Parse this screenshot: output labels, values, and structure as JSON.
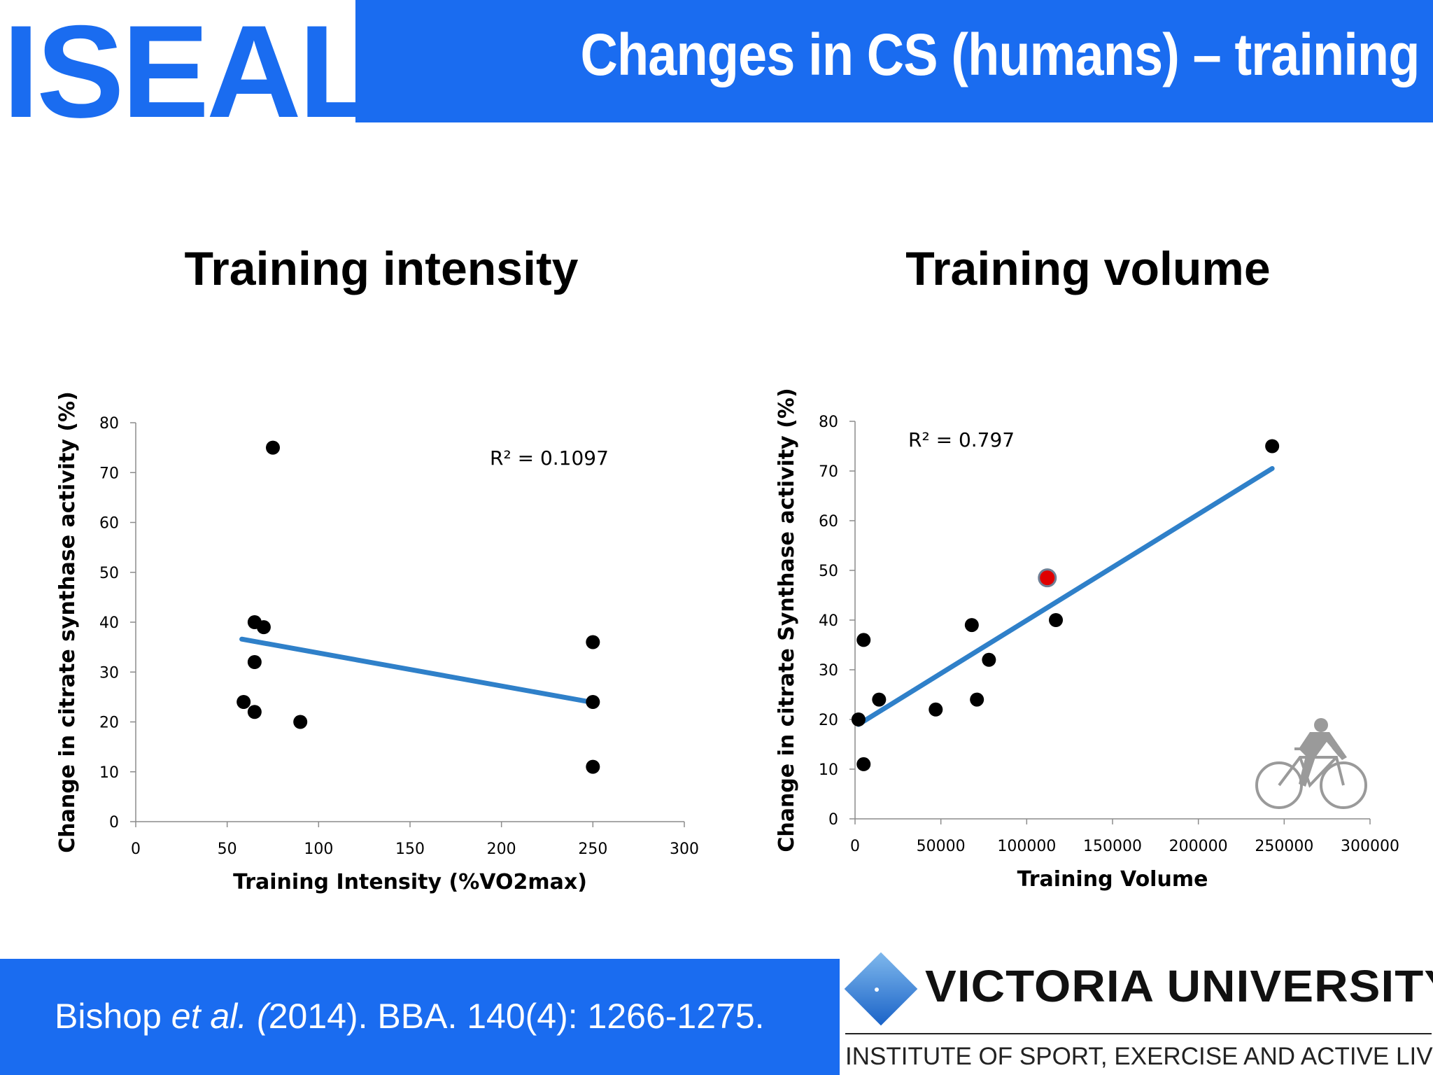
{
  "header": {
    "logo": "ISEAL",
    "title": "Changes in CS (humans) – training"
  },
  "colors": {
    "brand_blue": "#1a6cf0",
    "trend_line": "#2f80c9",
    "point": "#000000",
    "highlight_point": "#e00000"
  },
  "chart_data": [
    {
      "type": "scatter",
      "heading": "Training intensity",
      "xlabel": "Training Intensity (%VO2max)",
      "ylabel": "Change in citrate synthase activity (%)",
      "xlim": [
        0,
        300
      ],
      "ylim": [
        0,
        80
      ],
      "xticks": [
        0,
        50,
        100,
        150,
        200,
        250,
        300
      ],
      "yticks": [
        0,
        10,
        20,
        30,
        40,
        50,
        60,
        70,
        80
      ],
      "points": [
        {
          "x": 75,
          "y": 75
        },
        {
          "x": 65,
          "y": 40
        },
        {
          "x": 70,
          "y": 39
        },
        {
          "x": 65,
          "y": 32
        },
        {
          "x": 59,
          "y": 24
        },
        {
          "x": 65,
          "y": 22
        },
        {
          "x": 90,
          "y": 20
        },
        {
          "x": 250,
          "y": 36
        },
        {
          "x": 250,
          "y": 24
        },
        {
          "x": 250,
          "y": 11
        }
      ],
      "trendline": {
        "x": [
          58,
          250
        ],
        "y": [
          36.6,
          23.9
        ]
      },
      "annotation": "R² = 0.1097",
      "grid": false,
      "legend": "none"
    },
    {
      "type": "scatter",
      "heading": "Training volume",
      "xlabel": "Training Volume",
      "ylabel": "Change in citrate Synthase activity (%)",
      "xlim": [
        0,
        300000
      ],
      "ylim": [
        0,
        80
      ],
      "xticks": [
        0,
        50000,
        100000,
        150000,
        200000,
        250000,
        300000
      ],
      "yticks": [
        0,
        10,
        20,
        30,
        40,
        50,
        60,
        70,
        80
      ],
      "points": [
        {
          "x": 2000,
          "y": 20
        },
        {
          "x": 5000,
          "y": 36
        },
        {
          "x": 5000,
          "y": 11
        },
        {
          "x": 14000,
          "y": 24
        },
        {
          "x": 47000,
          "y": 22
        },
        {
          "x": 68000,
          "y": 39
        },
        {
          "x": 71000,
          "y": 24
        },
        {
          "x": 78000,
          "y": 32
        },
        {
          "x": 117000,
          "y": 40
        },
        {
          "x": 243000,
          "y": 75
        }
      ],
      "highlight_points": [
        {
          "x": 112000,
          "y": 48.5
        }
      ],
      "trendline": {
        "x": [
          2000,
          243000
        ],
        "y": [
          19,
          70.5
        ]
      },
      "annotation": "R² = 0.797",
      "grid": false,
      "legend": "none"
    }
  ],
  "footer": {
    "citation_authors": "Bishop ",
    "citation_etal": "et al. (",
    "citation_rest": "2014). BBA. 140(4): 1266-1275.",
    "university_name": "VICTORIA UNIVERSITY",
    "institute": "INSTITUTE OF SPORT, EXERCISE AND ACTIVE LIVING"
  }
}
